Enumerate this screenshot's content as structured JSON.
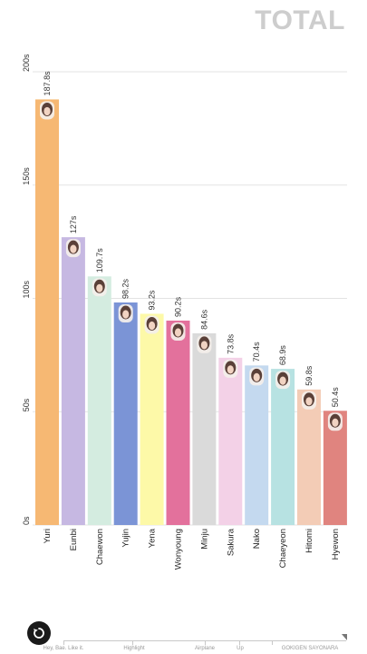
{
  "header": {
    "title": "TOTAL"
  },
  "chart_data": {
    "type": "bar",
    "title": "TOTAL",
    "categories": [
      "Yuri",
      "Eunbi",
      "Chaewon",
      "Yujin",
      "Yena",
      "Wonyoung",
      "Minju",
      "Sakura",
      "Nako",
      "Chaeyeon",
      "Hitomi",
      "Hyewon"
    ],
    "values": [
      187.8,
      127,
      109.7,
      98.2,
      93.2,
      90.2,
      84.6,
      73.8,
      70.4,
      68.9,
      59.8,
      50.4
    ],
    "value_labels": [
      "187.8s",
      "127s",
      "109.7s",
      "98.2s",
      "93.2s",
      "90.2s",
      "84.6s",
      "73.8s",
      "70.4s",
      "68.9s",
      "59.8s",
      "50.4s"
    ],
    "colors": [
      "#f6b873",
      "#c6b8e2",
      "#d4ece0",
      "#7b94d6",
      "#fdf9a8",
      "#e3719c",
      "#dadada",
      "#f3d1e7",
      "#c4d9ef",
      "#b7e2e2",
      "#f3ccb6",
      "#e0847f"
    ],
    "yticks": [
      0,
      50,
      100,
      150,
      200
    ],
    "ytick_labels": [
      "0s",
      "50s",
      "100s",
      "150s",
      "200s"
    ],
    "ylim": [
      0,
      200
    ],
    "grid": true,
    "xlabel": "",
    "ylabel": ""
  },
  "timeline": {
    "labels": [
      "Hey, Bae. Like it.",
      "Highlight",
      "Airplane",
      "Up",
      "GOKIGEN SAYONARA"
    ],
    "replay_icon": "replay-icon"
  }
}
